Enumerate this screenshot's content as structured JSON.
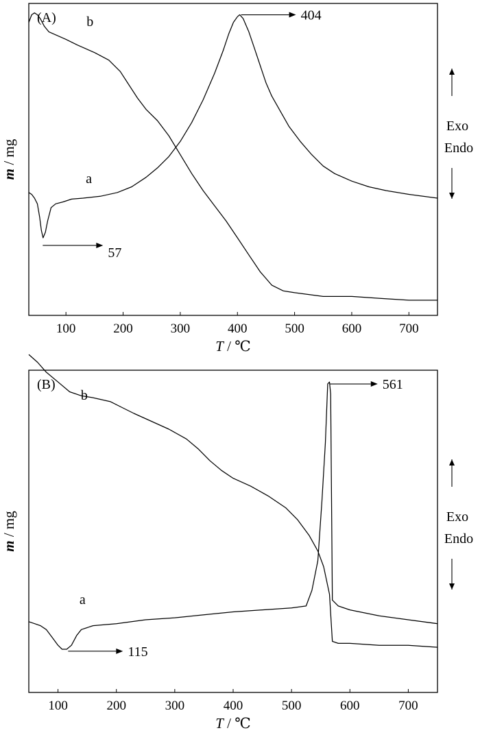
{
  "chart_data": [
    {
      "type": "line",
      "panel_label": "(A)",
      "xlabel_var": "T",
      "xlabel_unit": " / ℃",
      "ylabel_var": "m",
      "ylabel_unit": " / mg",
      "xlim": [
        35,
        750
      ],
      "xticks": [
        100,
        200,
        300,
        400,
        500,
        600,
        700
      ],
      "side_labels": [
        "Exo",
        "Endo"
      ],
      "series": [
        {
          "name": "a",
          "label_at": [
            140,
            0.35
          ],
          "points": [
            [
              35,
              0.25
            ],
            [
              40,
              0.26
            ],
            [
              45,
              0.28
            ],
            [
              50,
              0.31
            ],
            [
              54,
              0.38
            ],
            [
              57,
              0.45
            ],
            [
              60,
              0.49
            ],
            [
              64,
              0.46
            ],
            [
              68,
              0.4
            ],
            [
              74,
              0.33
            ],
            [
              82,
              0.31
            ],
            [
              95,
              0.3
            ],
            [
              110,
              0.285
            ],
            [
              130,
              0.28
            ],
            [
              160,
              0.27
            ],
            [
              190,
              0.25
            ],
            [
              215,
              0.22
            ],
            [
              240,
              0.17
            ],
            [
              260,
              0.12
            ],
            [
              280,
              0.06
            ],
            [
              300,
              -0.02
            ],
            [
              320,
              -0.12
            ],
            [
              340,
              -0.24
            ],
            [
              360,
              -0.38
            ],
            [
              375,
              -0.5
            ],
            [
              385,
              -0.59
            ],
            [
              393,
              -0.65
            ],
            [
              400,
              -0.68
            ],
            [
              404,
              -0.69
            ],
            [
              410,
              -0.67
            ],
            [
              420,
              -0.6
            ],
            [
              430,
              -0.51
            ],
            [
              440,
              -0.42
            ],
            [
              450,
              -0.33
            ],
            [
              460,
              -0.26
            ],
            [
              475,
              -0.18
            ],
            [
              490,
              -0.1
            ],
            [
              510,
              -0.02
            ],
            [
              530,
              0.05
            ],
            [
              550,
              0.11
            ],
            [
              570,
              0.15
            ],
            [
              600,
              0.19
            ],
            [
              630,
              0.22
            ],
            [
              660,
              0.24
            ],
            [
              700,
              0.26
            ],
            [
              750,
              0.28
            ]
          ]
        },
        {
          "name": "b",
          "points": [
            [
              35,
              -0.65
            ],
            [
              40,
              -0.69
            ],
            [
              45,
              -0.7
            ],
            [
              50,
              -0.69
            ],
            [
              55,
              -0.67
            ],
            [
              62,
              -0.63
            ],
            [
              70,
              -0.6
            ],
            [
              85,
              -0.58
            ],
            [
              100,
              -0.56
            ],
            [
              120,
              -0.53
            ],
            [
              150,
              -0.49
            ],
            [
              175,
              -0.45
            ],
            [
              195,
              -0.39
            ],
            [
              210,
              -0.32
            ],
            [
              225,
              -0.25
            ],
            [
              240,
              -0.19
            ],
            [
              260,
              -0.13
            ],
            [
              280,
              -0.05
            ],
            [
              300,
              0.05
            ],
            [
              320,
              0.15
            ],
            [
              340,
              0.24
            ],
            [
              360,
              0.32
            ],
            [
              380,
              0.4
            ],
            [
              400,
              0.49
            ],
            [
              420,
              0.58
            ],
            [
              440,
              0.67
            ],
            [
              460,
              0.74
            ],
            [
              480,
              0.77
            ],
            [
              500,
              0.78
            ],
            [
              550,
              0.8
            ],
            [
              600,
              0.8
            ],
            [
              650,
              0.81
            ],
            [
              700,
              0.82
            ],
            [
              750,
              0.82
            ]
          ]
        }
      ],
      "annotations": [
        {
          "label": "404",
          "x": 404,
          "dir": "right"
        },
        {
          "label": "57",
          "x": 57,
          "dir": "right"
        }
      ]
    },
    {
      "type": "line",
      "panel_label": "(B)",
      "xlabel_var": "T",
      "xlabel_unit": " / ℃",
      "ylabel_var": "m",
      "ylabel_unit": " / mg",
      "xlim": [
        50,
        750
      ],
      "xticks": [
        100,
        200,
        300,
        400,
        500,
        600,
        700
      ],
      "side_labels": [
        "Exo",
        "Endo"
      ],
      "series": [
        {
          "name": "a",
          "label_at": [
            145,
            0.26
          ],
          "points": [
            [
              50,
              0.36
            ],
            [
              60,
              0.37
            ],
            [
              70,
              0.38
            ],
            [
              80,
              0.4
            ],
            [
              90,
              0.44
            ],
            [
              100,
              0.48
            ],
            [
              107,
              0.5
            ],
            [
              115,
              0.5
            ],
            [
              123,
              0.48
            ],
            [
              132,
              0.43
            ],
            [
              140,
              0.4
            ],
            [
              160,
              0.38
            ],
            [
              200,
              0.37
            ],
            [
              250,
              0.35
            ],
            [
              300,
              0.34
            ],
            [
              350,
              0.325
            ],
            [
              400,
              0.31
            ],
            [
              450,
              0.3
            ],
            [
              500,
              0.29
            ],
            [
              525,
              0.28
            ],
            [
              535,
              0.2
            ],
            [
              545,
              0.05
            ],
            [
              552,
              -0.25
            ],
            [
              558,
              -0.55
            ],
            [
              562,
              -0.85
            ],
            [
              565,
              -0.86
            ],
            [
              567,
              -0.8
            ],
            [
              570,
              0.25
            ],
            [
              580,
              0.28
            ],
            [
              600,
              0.3
            ],
            [
              650,
              0.33
            ],
            [
              700,
              0.35
            ],
            [
              750,
              0.37
            ]
          ]
        },
        {
          "name": "b",
          "label_at": [
            125,
            -0.76
          ],
          "points": [
            [
              50,
              -1.0
            ],
            [
              65,
              -0.96
            ],
            [
              80,
              -0.91
            ],
            [
              100,
              -0.86
            ],
            [
              120,
              -0.81
            ],
            [
              140,
              -0.79
            ],
            [
              160,
              -0.78
            ],
            [
              190,
              -0.76
            ],
            [
              210,
              -0.73
            ],
            [
              230,
              -0.7
            ],
            [
              260,
              -0.66
            ],
            [
              290,
              -0.62
            ],
            [
              320,
              -0.57
            ],
            [
              340,
              -0.52
            ],
            [
              360,
              -0.46
            ],
            [
              380,
              -0.41
            ],
            [
              400,
              -0.37
            ],
            [
              430,
              -0.33
            ],
            [
              460,
              -0.28
            ],
            [
              490,
              -0.22
            ],
            [
              510,
              -0.16
            ],
            [
              530,
              -0.08
            ],
            [
              545,
              0.0
            ],
            [
              555,
              0.08
            ],
            [
              565,
              0.22
            ],
            [
              570,
              0.46
            ],
            [
              580,
              0.47
            ],
            [
              600,
              0.47
            ],
            [
              650,
              0.48
            ],
            [
              700,
              0.48
            ],
            [
              750,
              0.49
            ]
          ]
        }
      ],
      "annotations": [
        {
          "label": "561",
          "x": 563,
          "dir": "right"
        },
        {
          "label": "115",
          "x": 115,
          "dir": "right"
        }
      ]
    }
  ]
}
